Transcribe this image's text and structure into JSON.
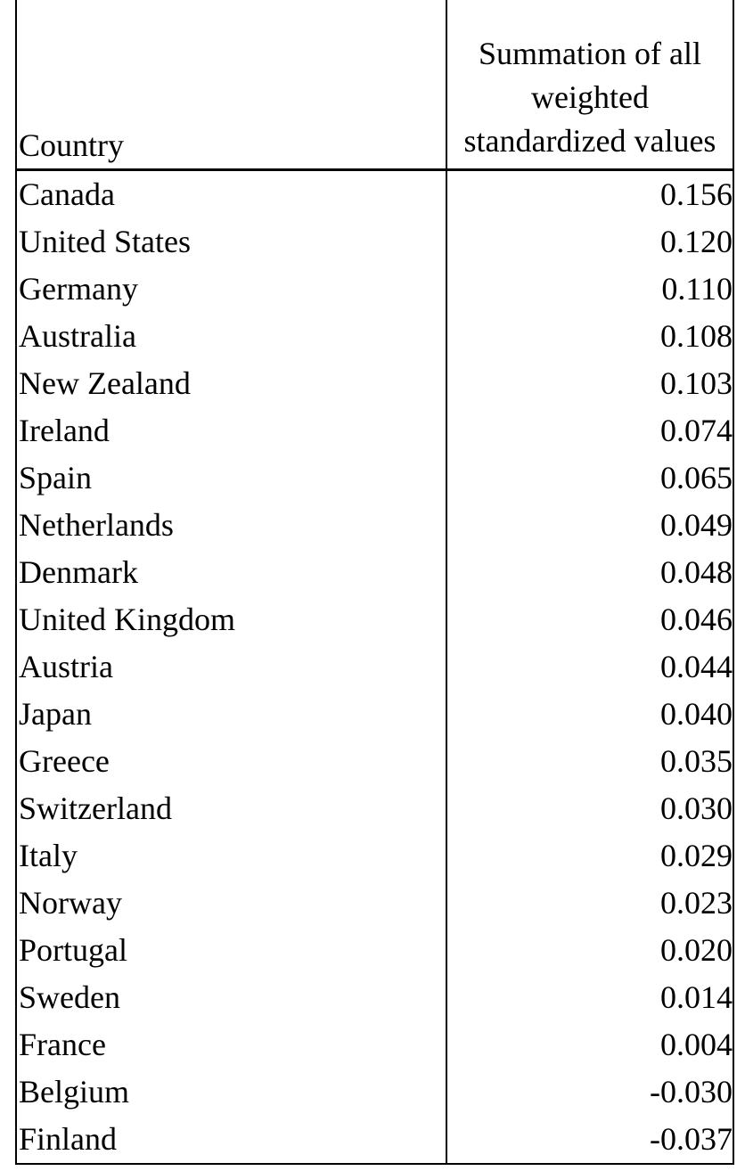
{
  "table": {
    "header": [
      "Country",
      "Summation of all weighted standardized values"
    ],
    "rows": [
      [
        "Canada",
        "0.156"
      ],
      [
        "United States",
        "0.120"
      ],
      [
        "Germany",
        "0.110"
      ],
      [
        "Australia",
        "0.108"
      ],
      [
        "New Zealand",
        "0.103"
      ],
      [
        "Ireland",
        "0.074"
      ],
      [
        "Spain",
        "0.065"
      ],
      [
        "Netherlands",
        "0.049"
      ],
      [
        "Denmark",
        "0.048"
      ],
      [
        "United Kingdom",
        "0.046"
      ],
      [
        "Austria",
        "0.044"
      ],
      [
        "Japan",
        "0.040"
      ],
      [
        "Greece",
        "0.035"
      ],
      [
        "Switzerland",
        "0.030"
      ],
      [
        "Italy",
        "0.029"
      ],
      [
        "Norway",
        "0.023"
      ],
      [
        "Portugal",
        "0.020"
      ],
      [
        "Sweden",
        "0.014"
      ],
      [
        "France",
        "0.004"
      ],
      [
        "Belgium",
        "-0.030"
      ],
      [
        "Finland",
        "-0.037"
      ]
    ]
  }
}
